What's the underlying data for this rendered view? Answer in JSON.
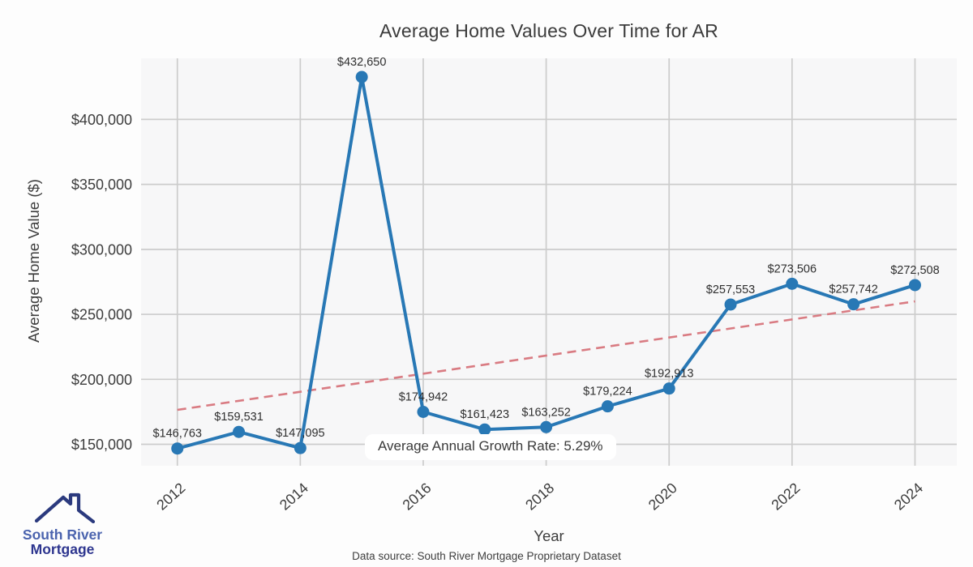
{
  "title": "Average Home Values Over Time for AR",
  "footer": {
    "source": "Data source: South River Mortgage Proprietary Dataset"
  },
  "logo": {
    "name": "South River Mortgage",
    "line1": "South River",
    "line2": "Mortgage",
    "icon": "house-roof-icon"
  },
  "chart_data": {
    "type": "line",
    "title": "Average Home Values Over Time for AR",
    "xlabel": "Year",
    "ylabel": "Average Home Value ($)",
    "x": [
      2012,
      2013,
      2014,
      2015,
      2016,
      2017,
      2018,
      2019,
      2020,
      2021,
      2022,
      2023,
      2024
    ],
    "series": [
      {
        "name": "Average Home Value",
        "color": "#2878b5",
        "marker": "circle",
        "values": [
          146763,
          159531,
          147095,
          432650,
          174942,
          161423,
          163252,
          179224,
          192913,
          257553,
          273506,
          257742,
          272508
        ],
        "point_labels": [
          "$146,763",
          "$159,531",
          "$147,095",
          "$432,650",
          "$174,942",
          "$161,423",
          "$163,252",
          "$179,224",
          "$192,913",
          "$257,553",
          "$273,506",
          "$257,742",
          "$272,508"
        ]
      }
    ],
    "trend_line": {
      "style": "dashed",
      "color": "#d97b82",
      "start": {
        "x": 2012,
        "y": 176500
      },
      "end": {
        "x": 2024,
        "y": 260000
      }
    },
    "annotation": "Average Annual Growth Rate: 5.29%",
    "xticks": [
      2012,
      2014,
      2016,
      2018,
      2020,
      2022,
      2024
    ],
    "yticks": [
      150000,
      200000,
      250000,
      300000,
      350000,
      400000
    ],
    "ytick_labels": [
      "$150,000",
      "$200,000",
      "$250,000",
      "$300,000",
      "$350,000",
      "$400,000"
    ],
    "xlim": [
      2011.41,
      2024.68
    ],
    "ylim": [
      133500,
      447000
    ],
    "grid": true,
    "legend": "none",
    "colors": {
      "fig_bg": "#fdfdfd",
      "plot_bg": "#f7f7f8",
      "grid": "#cccccc",
      "line": "#2878b5",
      "trend": "#d97b82",
      "text": "#3b3b3b"
    }
  }
}
